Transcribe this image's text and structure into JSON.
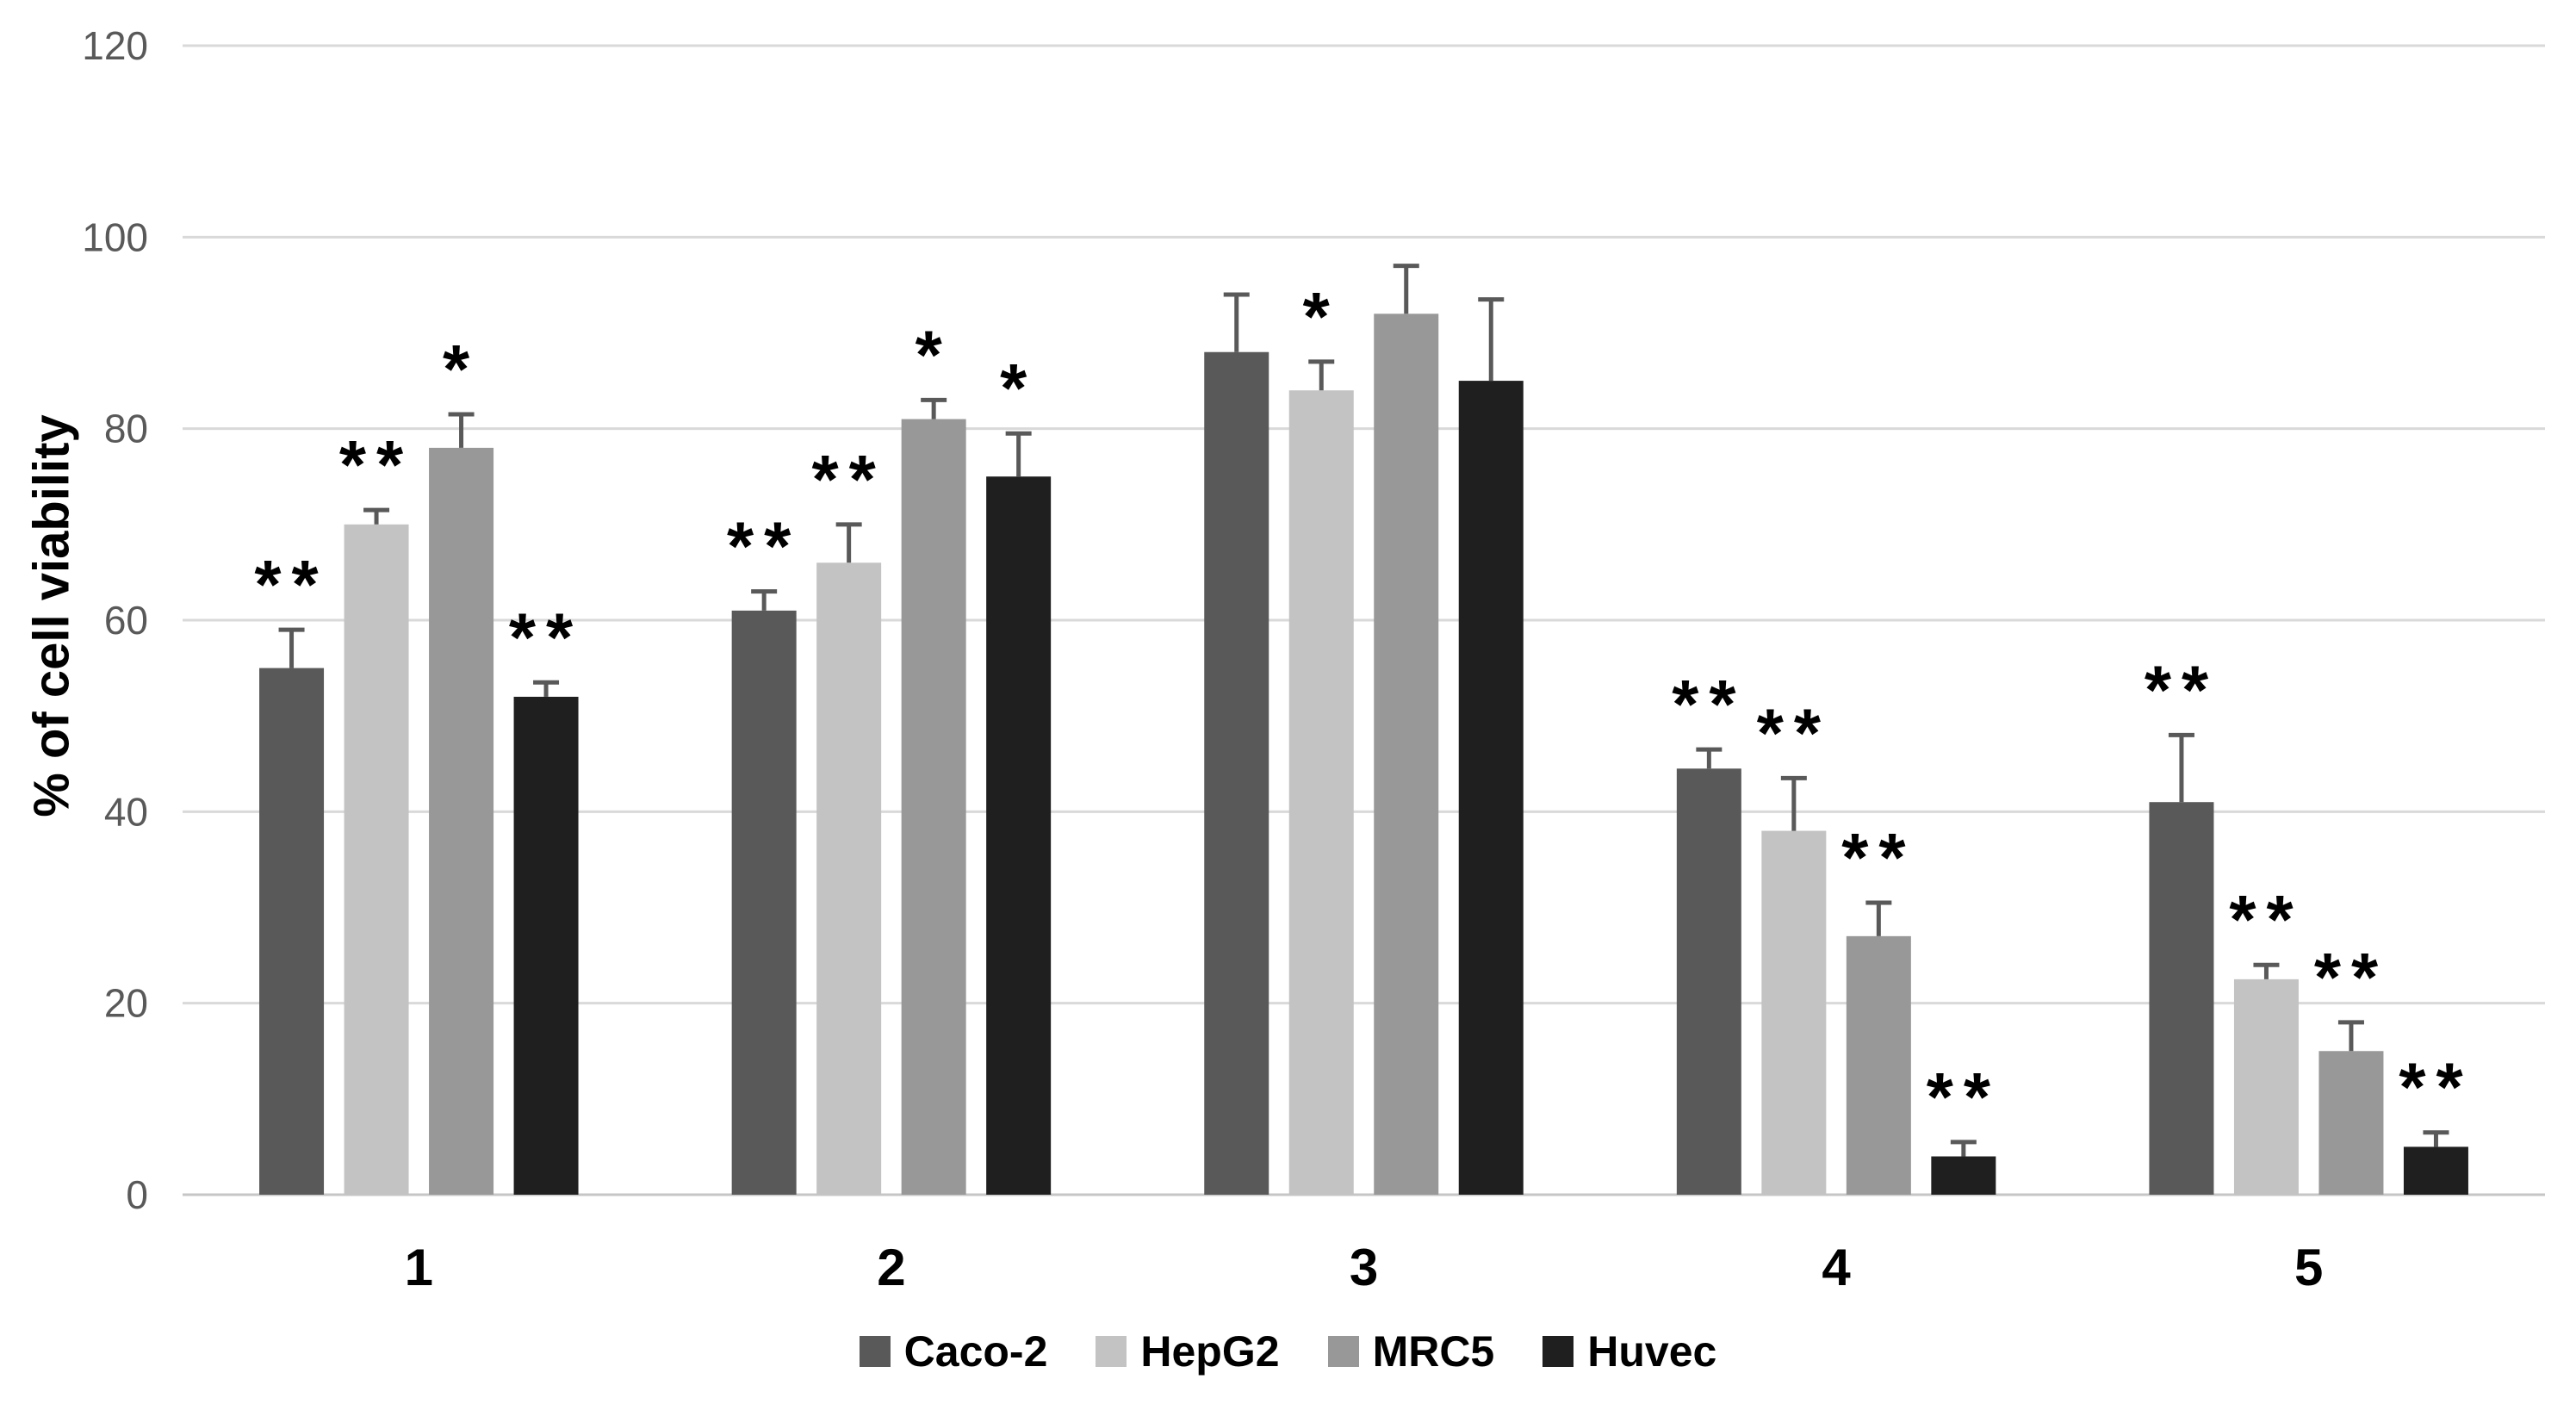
{
  "chart_data": {
    "type": "bar",
    "title": "",
    "xlabel": "",
    "ylabel": "% of cell viability",
    "categories": [
      "1",
      "2",
      "3",
      "4",
      "5"
    ],
    "yticks": [
      "0",
      "20",
      "40",
      "60",
      "80",
      "100",
      "120"
    ],
    "ylim": [
      0,
      120
    ],
    "grid": true,
    "legend_position": "bottom",
    "series": [
      {
        "name": "Caco-2",
        "color": "#595959",
        "values": [
          55,
          61,
          88,
          44.5,
          41
        ],
        "errors": [
          4,
          2,
          6,
          2,
          7
        ],
        "sig": [
          "**",
          "**",
          "",
          "**",
          "**"
        ]
      },
      {
        "name": "HepG2",
        "color": "#c3c3c3",
        "values": [
          70,
          66,
          84,
          38,
          22.5
        ],
        "errors": [
          1.5,
          4,
          3,
          5.5,
          1.5
        ],
        "sig": [
          "**",
          "**",
          "*",
          "**",
          "**"
        ]
      },
      {
        "name": "MRC5",
        "color": "#989898",
        "values": [
          78,
          81,
          92,
          27,
          15
        ],
        "errors": [
          3.5,
          2,
          5,
          3.5,
          3
        ],
        "sig": [
          "*",
          "*",
          "",
          "**",
          "**"
        ]
      },
      {
        "name": "Huvec",
        "color": "#1f1f1f",
        "values": [
          52,
          75,
          85,
          4,
          5
        ],
        "errors": [
          1.5,
          4.5,
          8.5,
          1.5,
          1.5
        ],
        "sig": [
          "**",
          "*",
          "",
          "**",
          "**"
        ]
      }
    ],
    "error_bar_color": "#595959",
    "sig_marker_color": "#000000",
    "gridline_color": "#d9d9d9",
    "axis_line_color": "#c6c6c6",
    "tick_label_color": "#595959"
  }
}
